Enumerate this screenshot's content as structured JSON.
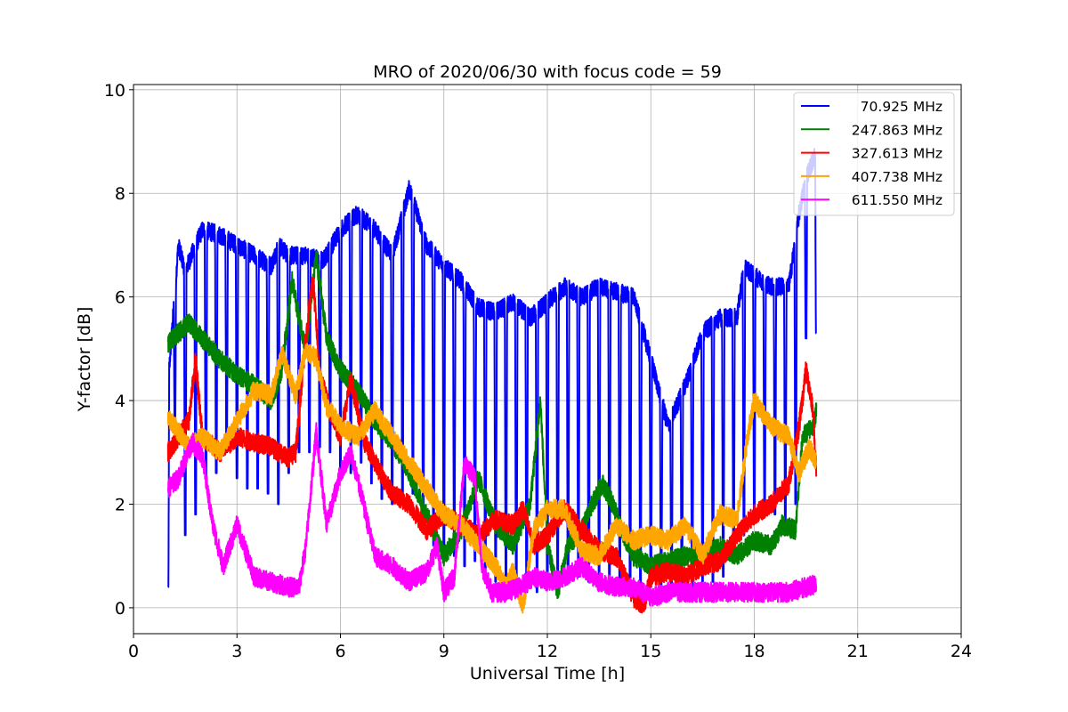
{
  "chart_data": {
    "type": "line",
    "title": "MRO of 2020/06/30 with focus code = 59",
    "xlabel": "Universal Time [h]",
    "ylabel": "Y-factor [dB]",
    "xlim": [
      0,
      24
    ],
    "ylim": [
      -0.5,
      10.1
    ],
    "xticks": [
      0,
      3,
      6,
      9,
      12,
      15,
      18,
      21,
      24
    ],
    "yticks": [
      0,
      2,
      4,
      6,
      8,
      10
    ],
    "xtick_labels": [
      "0",
      "3",
      "6",
      "9",
      "12",
      "15",
      "18",
      "21",
      "24"
    ],
    "ytick_labels": [
      "0",
      "2",
      "4",
      "6",
      "8",
      "10"
    ],
    "grid": true,
    "legend_position": "top-right",
    "series": [
      {
        "name": "70.925 MHz",
        "color": "#0000ff",
        "baseline": [
          [
            1.0,
            4.3
          ],
          [
            1.3,
            7.0
          ],
          [
            1.5,
            6.5
          ],
          [
            1.8,
            7.0
          ],
          [
            2.0,
            7.3
          ],
          [
            2.5,
            7.2
          ],
          [
            3.0,
            7.0
          ],
          [
            3.5,
            6.8
          ],
          [
            4.0,
            6.6
          ],
          [
            4.2,
            7.0
          ],
          [
            4.5,
            6.8
          ],
          [
            5.0,
            6.8
          ],
          [
            5.5,
            6.7
          ],
          [
            6.0,
            7.3
          ],
          [
            6.5,
            7.6
          ],
          [
            7.0,
            7.3
          ],
          [
            7.5,
            6.8
          ],
          [
            8.0,
            8.1
          ],
          [
            8.5,
            7.0
          ],
          [
            9.0,
            6.6
          ],
          [
            9.5,
            6.3
          ],
          [
            10.0,
            5.8
          ],
          [
            10.5,
            5.7
          ],
          [
            11.0,
            5.9
          ],
          [
            11.5,
            5.6
          ],
          [
            12.0,
            5.9
          ],
          [
            12.5,
            6.2
          ],
          [
            13.0,
            6.0
          ],
          [
            13.5,
            6.2
          ],
          [
            14.0,
            6.1
          ],
          [
            14.5,
            6.0
          ],
          [
            15.0,
            4.8
          ],
          [
            15.5,
            3.5
          ],
          [
            16.0,
            4.3
          ],
          [
            16.5,
            5.3
          ],
          [
            17.0,
            5.6
          ],
          [
            17.5,
            5.6
          ],
          [
            17.7,
            6.6
          ],
          [
            18.0,
            6.4
          ],
          [
            18.5,
            6.2
          ],
          [
            19.0,
            6.2
          ],
          [
            19.3,
            7.6
          ],
          [
            19.5,
            8.3
          ],
          [
            19.8,
            8.8
          ]
        ],
        "dips": [
          [
            1.0,
            0.4
          ],
          [
            1.2,
            3.6
          ],
          [
            1.5,
            1.4
          ],
          [
            1.8,
            1.8
          ],
          [
            2.1,
            2.5
          ],
          [
            2.4,
            2.6
          ],
          [
            2.7,
            3.0
          ],
          [
            3.0,
            2.5
          ],
          [
            3.3,
            2.3
          ],
          [
            3.6,
            2.3
          ],
          [
            3.9,
            2.2
          ],
          [
            4.2,
            2.0
          ],
          [
            4.5,
            2.6
          ],
          [
            4.8,
            3.0
          ],
          [
            5.1,
            3.0
          ],
          [
            5.4,
            3.1
          ],
          [
            5.7,
            3.0
          ],
          [
            6.0,
            2.7
          ],
          [
            6.3,
            2.6
          ],
          [
            6.6,
            2.8
          ],
          [
            6.9,
            2.4
          ],
          [
            7.2,
            2.1
          ],
          [
            7.5,
            2.0
          ],
          [
            7.8,
            2.0
          ],
          [
            8.1,
            2.2
          ],
          [
            8.4,
            1.5
          ],
          [
            8.7,
            1.2
          ],
          [
            9.0,
            0.9
          ],
          [
            9.3,
            1.0
          ],
          [
            9.6,
            0.8
          ],
          [
            9.9,
            0.9
          ],
          [
            10.2,
            0.6
          ],
          [
            10.5,
            0.5
          ],
          [
            10.8,
            0.6
          ],
          [
            11.1,
            0.4
          ],
          [
            11.4,
            0.3
          ],
          [
            11.7,
            0.3
          ],
          [
            12.0,
            0.4
          ],
          [
            12.3,
            0.4
          ],
          [
            12.6,
            0.5
          ],
          [
            12.9,
            0.6
          ],
          [
            13.2,
            0.5
          ],
          [
            13.5,
            0.5
          ],
          [
            13.8,
            0.4
          ],
          [
            14.1,
            0.3
          ],
          [
            14.4,
            0.3
          ],
          [
            14.7,
            0.3
          ],
          [
            15.0,
            0.4
          ],
          [
            15.3,
            0.4
          ],
          [
            15.6,
            0.3
          ],
          [
            15.9,
            0.4
          ],
          [
            16.2,
            0.4
          ],
          [
            16.5,
            0.5
          ],
          [
            16.8,
            0.5
          ],
          [
            17.1,
            0.6
          ],
          [
            17.4,
            1.0
          ],
          [
            17.7,
            1.4
          ],
          [
            18.0,
            1.8
          ],
          [
            18.3,
            1.9
          ],
          [
            18.6,
            1.8
          ],
          [
            18.9,
            1.6
          ],
          [
            19.2,
            2.0
          ],
          [
            19.5,
            5.2
          ],
          [
            19.8,
            5.3
          ]
        ]
      },
      {
        "name": "247.863 MHz",
        "color": "#008000",
        "points": [
          [
            1.0,
            5.1
          ],
          [
            1.3,
            5.3
          ],
          [
            1.6,
            5.5
          ],
          [
            2.0,
            5.2
          ],
          [
            2.5,
            4.8
          ],
          [
            3.0,
            4.5
          ],
          [
            3.5,
            4.3
          ],
          [
            4.0,
            4.0
          ],
          [
            4.3,
            4.6
          ],
          [
            4.6,
            6.3
          ],
          [
            4.8,
            5.6
          ],
          [
            5.0,
            5.0
          ],
          [
            5.3,
            6.8
          ],
          [
            5.6,
            5.2
          ],
          [
            6.0,
            4.6
          ],
          [
            6.5,
            4.2
          ],
          [
            7.0,
            3.6
          ],
          [
            7.5,
            3.2
          ],
          [
            8.0,
            2.6
          ],
          [
            8.5,
            1.8
          ],
          [
            9.0,
            1.0
          ],
          [
            9.5,
            1.5
          ],
          [
            10.0,
            2.5
          ],
          [
            10.5,
            1.6
          ],
          [
            11.0,
            1.2
          ],
          [
            11.5,
            2.0
          ],
          [
            11.8,
            4.0
          ],
          [
            12.0,
            1.2
          ],
          [
            12.3,
            0.3
          ],
          [
            12.6,
            1.2
          ],
          [
            13.0,
            1.5
          ],
          [
            13.3,
            2.0
          ],
          [
            13.6,
            2.4
          ],
          [
            13.9,
            2.0
          ],
          [
            14.2,
            1.4
          ],
          [
            14.5,
            1.0
          ],
          [
            15.0,
            0.8
          ],
          [
            15.5,
            0.9
          ],
          [
            16.0,
            1.0
          ],
          [
            16.5,
            1.0
          ],
          [
            17.0,
            1.2
          ],
          [
            17.5,
            1.0
          ],
          [
            18.0,
            1.3
          ],
          [
            18.5,
            1.2
          ],
          [
            18.8,
            1.6
          ],
          [
            19.2,
            1.5
          ],
          [
            19.4,
            3.3
          ],
          [
            19.7,
            3.5
          ],
          [
            19.8,
            3.8
          ]
        ]
      },
      {
        "name": "327.613 MHz",
        "color": "#ff0000",
        "points": [
          [
            1.0,
            3.0
          ],
          [
            1.3,
            3.3
          ],
          [
            1.6,
            3.6
          ],
          [
            1.8,
            4.8
          ],
          [
            2.0,
            3.3
          ],
          [
            2.5,
            3.0
          ],
          [
            3.0,
            3.3
          ],
          [
            3.5,
            3.2
          ],
          [
            4.0,
            3.1
          ],
          [
            4.5,
            2.9
          ],
          [
            4.7,
            3.0
          ],
          [
            5.0,
            5.2
          ],
          [
            5.2,
            6.4
          ],
          [
            5.4,
            4.5
          ],
          [
            5.7,
            3.8
          ],
          [
            6.0,
            3.3
          ],
          [
            6.3,
            4.4
          ],
          [
            6.7,
            3.2
          ],
          [
            7.0,
            2.8
          ],
          [
            7.5,
            2.2
          ],
          [
            8.0,
            2.0
          ],
          [
            8.5,
            1.5
          ],
          [
            9.0,
            1.8
          ],
          [
            9.5,
            1.6
          ],
          [
            10.0,
            1.4
          ],
          [
            10.5,
            1.7
          ],
          [
            11.0,
            1.6
          ],
          [
            11.3,
            1.9
          ],
          [
            11.6,
            1.2
          ],
          [
            12.0,
            1.4
          ],
          [
            12.5,
            1.9
          ],
          [
            13.0,
            1.5
          ],
          [
            13.5,
            1.1
          ],
          [
            14.0,
            1.0
          ],
          [
            14.5,
            0.2
          ],
          [
            14.8,
            0.05
          ],
          [
            15.0,
            0.6
          ],
          [
            15.5,
            0.7
          ],
          [
            16.0,
            0.6
          ],
          [
            16.5,
            0.8
          ],
          [
            17.0,
            0.9
          ],
          [
            17.5,
            1.4
          ],
          [
            18.0,
            1.8
          ],
          [
            18.5,
            2.0
          ],
          [
            19.0,
            2.4
          ],
          [
            19.3,
            3.5
          ],
          [
            19.5,
            4.6
          ],
          [
            19.7,
            3.8
          ],
          [
            19.8,
            2.6
          ]
        ]
      },
      {
        "name": "407.738 MHz",
        "color": "#ffa500",
        "points": [
          [
            1.0,
            3.7
          ],
          [
            1.3,
            3.4
          ],
          [
            1.6,
            3.1
          ],
          [
            2.0,
            3.3
          ],
          [
            2.5,
            3.0
          ],
          [
            3.0,
            3.6
          ],
          [
            3.5,
            4.2
          ],
          [
            4.0,
            4.1
          ],
          [
            4.3,
            4.9
          ],
          [
            4.7,
            4.1
          ],
          [
            5.0,
            5.0
          ],
          [
            5.3,
            4.8
          ],
          [
            5.6,
            3.9
          ],
          [
            6.0,
            3.5
          ],
          [
            6.5,
            3.3
          ],
          [
            7.0,
            3.8
          ],
          [
            7.5,
            3.3
          ],
          [
            8.0,
            2.8
          ],
          [
            8.5,
            2.3
          ],
          [
            9.0,
            1.8
          ],
          [
            9.5,
            1.6
          ],
          [
            10.0,
            1.2
          ],
          [
            10.5,
            0.8
          ],
          [
            10.8,
            0.4
          ],
          [
            11.0,
            0.7
          ],
          [
            11.3,
            0.0
          ],
          [
            11.6,
            1.5
          ],
          [
            12.0,
            1.9
          ],
          [
            12.5,
            1.9
          ],
          [
            13.0,
            1.1
          ],
          [
            13.5,
            1.0
          ],
          [
            14.0,
            1.6
          ],
          [
            14.5,
            1.3
          ],
          [
            15.0,
            1.4
          ],
          [
            15.5,
            1.3
          ],
          [
            16.0,
            1.6
          ],
          [
            16.5,
            1.0
          ],
          [
            17.0,
            1.8
          ],
          [
            17.5,
            1.7
          ],
          [
            17.8,
            3.3
          ],
          [
            18.0,
            4.0
          ],
          [
            18.5,
            3.5
          ],
          [
            19.0,
            3.3
          ],
          [
            19.3,
            2.6
          ],
          [
            19.6,
            3.1
          ],
          [
            19.8,
            2.8
          ]
        ]
      },
      {
        "name": "611.550 MHz",
        "color": "#ff00ff",
        "points": [
          [
            1.0,
            2.3
          ],
          [
            1.3,
            2.5
          ],
          [
            1.7,
            3.2
          ],
          [
            2.0,
            2.9
          ],
          [
            2.3,
            1.6
          ],
          [
            2.6,
            0.8
          ],
          [
            3.0,
            1.6
          ],
          [
            3.3,
            1.0
          ],
          [
            3.5,
            0.6
          ],
          [
            4.0,
            0.5
          ],
          [
            4.5,
            0.4
          ],
          [
            4.8,
            0.4
          ],
          [
            5.0,
            1.2
          ],
          [
            5.3,
            3.4
          ],
          [
            5.6,
            1.6
          ],
          [
            6.0,
            2.6
          ],
          [
            6.3,
            3.0
          ],
          [
            6.6,
            2.2
          ],
          [
            7.0,
            1.0
          ],
          [
            7.5,
            0.8
          ],
          [
            8.0,
            0.5
          ],
          [
            8.5,
            0.7
          ],
          [
            8.8,
            1.2
          ],
          [
            9.0,
            0.3
          ],
          [
            9.3,
            0.6
          ],
          [
            9.6,
            2.8
          ],
          [
            9.9,
            2.5
          ],
          [
            10.1,
            0.8
          ],
          [
            10.4,
            0.3
          ],
          [
            10.8,
            0.3
          ],
          [
            11.2,
            0.4
          ],
          [
            11.6,
            0.6
          ],
          [
            12.0,
            0.5
          ],
          [
            12.5,
            0.6
          ],
          [
            13.0,
            0.8
          ],
          [
            13.5,
            0.5
          ],
          [
            14.0,
            0.4
          ],
          [
            14.5,
            0.4
          ],
          [
            15.0,
            0.2
          ],
          [
            15.5,
            0.3
          ],
          [
            16.0,
            0.3
          ],
          [
            16.5,
            0.3
          ],
          [
            17.0,
            0.3
          ],
          [
            17.5,
            0.3
          ],
          [
            18.0,
            0.3
          ],
          [
            18.5,
            0.3
          ],
          [
            19.0,
            0.3
          ],
          [
            19.5,
            0.4
          ],
          [
            19.8,
            0.45
          ]
        ]
      }
    ]
  }
}
